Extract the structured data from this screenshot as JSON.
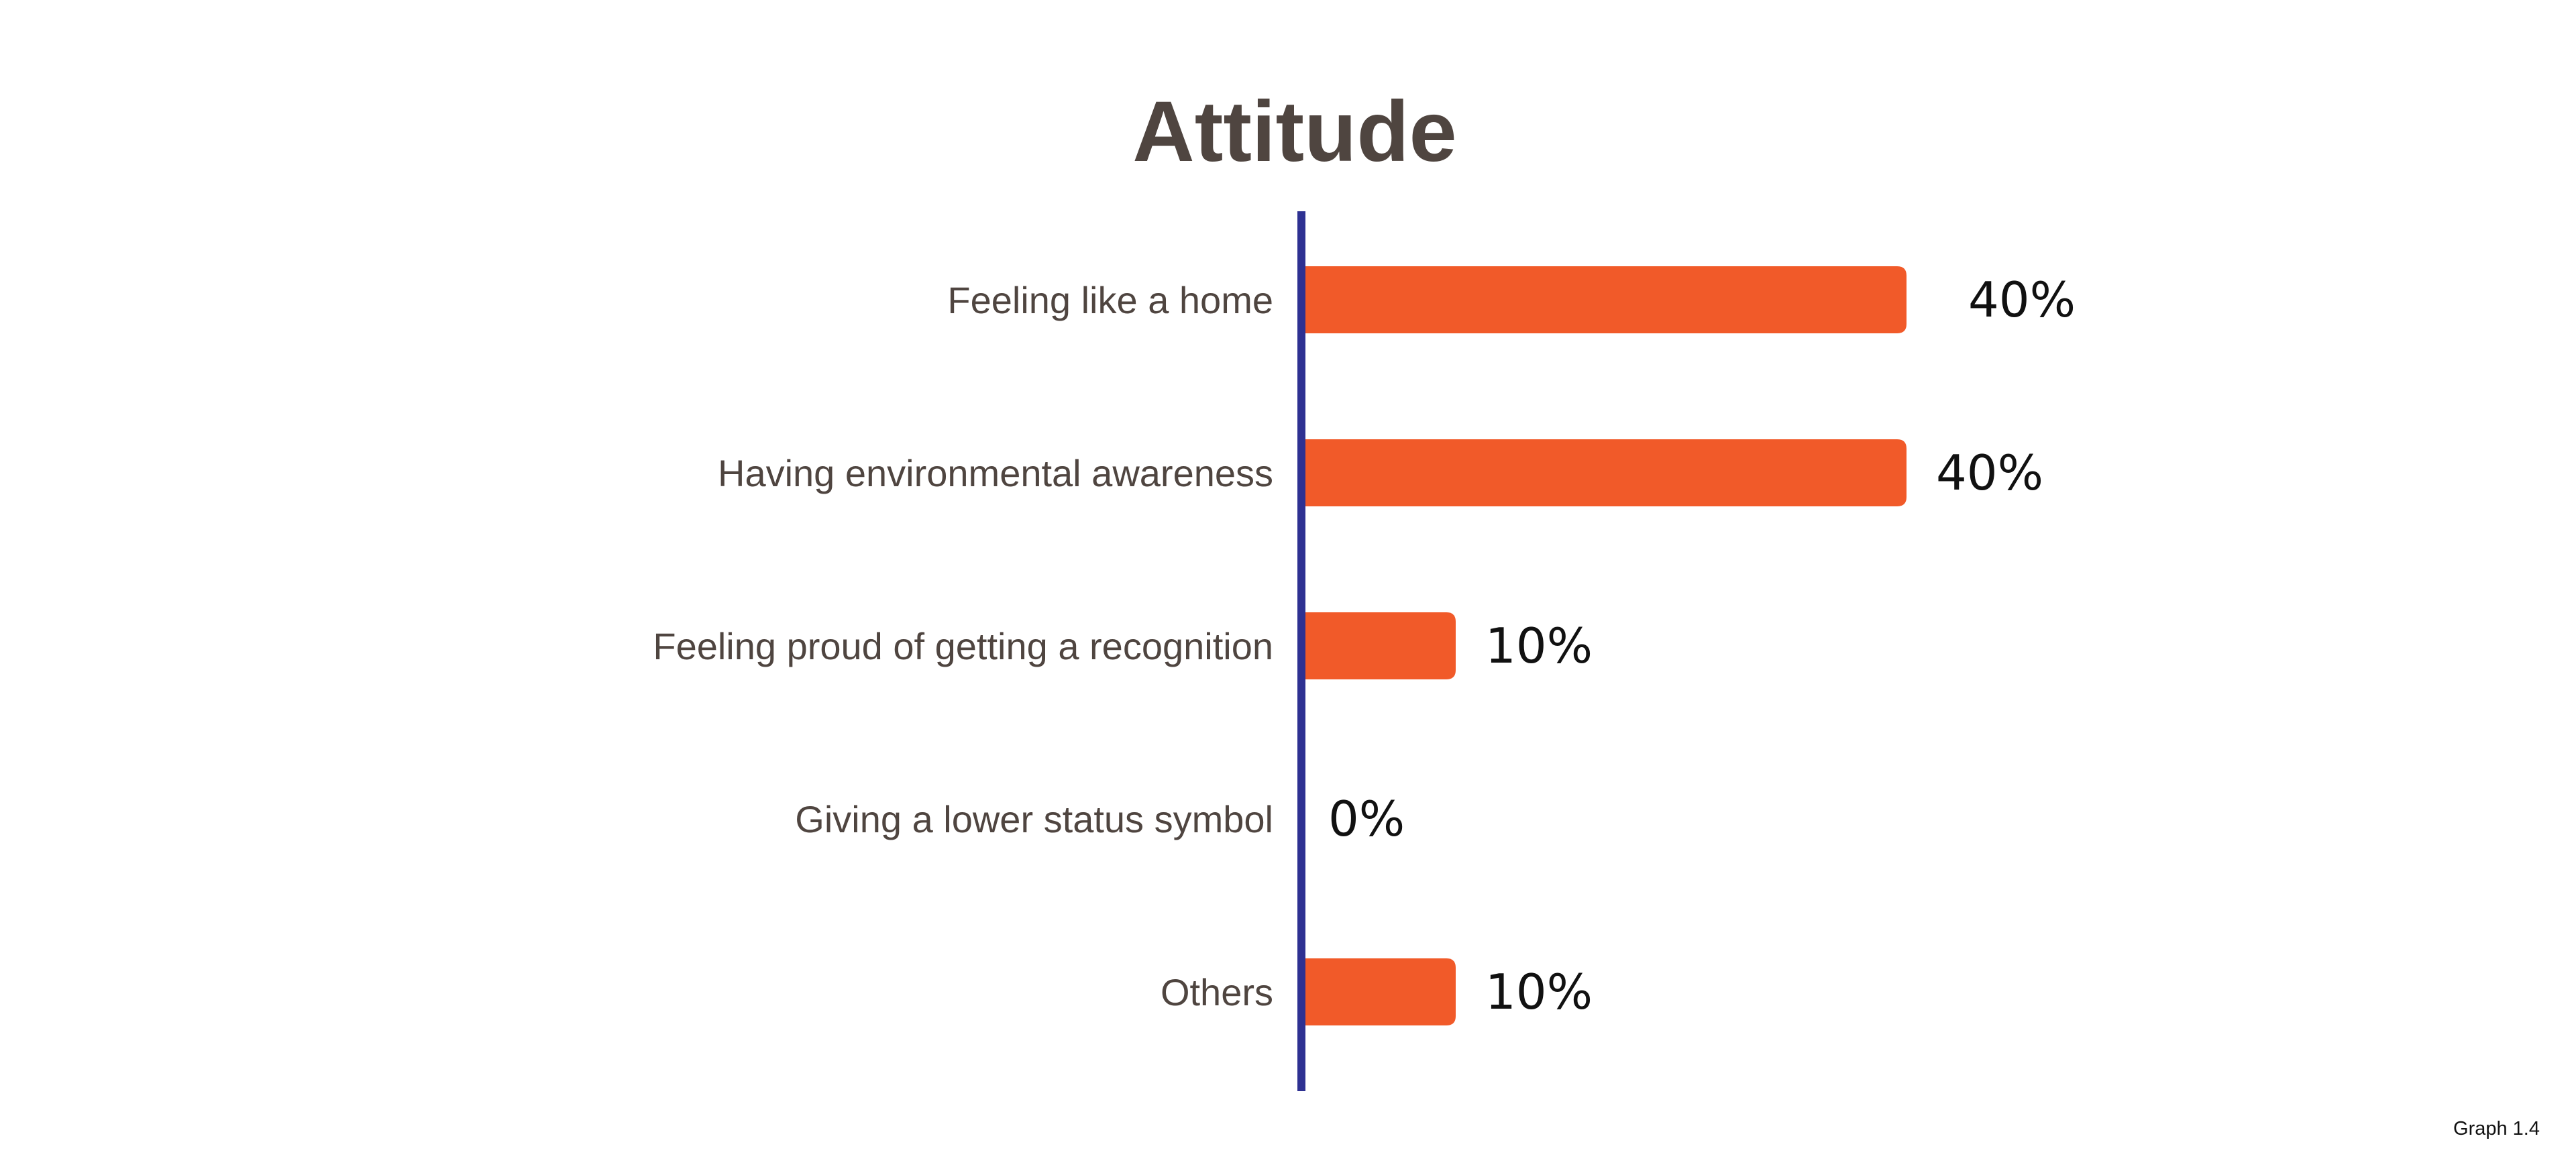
{
  "chart_data": {
    "type": "bar",
    "orientation": "horizontal",
    "title": "Attitude",
    "categories": [
      "Feeling like a home",
      "Having environmental awareness",
      "Feeling proud of getting a recognition",
      "Giving a lower status symbol",
      "Others"
    ],
    "values": [
      40,
      40,
      10,
      0,
      10
    ],
    "value_labels": [
      "40%",
      "40%",
      "10%",
      "0%",
      "10%"
    ],
    "unit": "%",
    "xlim": [
      0,
      40
    ],
    "grid": false,
    "legend": "none",
    "colors": {
      "bar": "#F15A29",
      "axis": "#2E3192",
      "title": "#4F4540",
      "category_text": "#4F4540",
      "value_text": "#111111"
    }
  },
  "footer": {
    "note": "Graph 1.4"
  }
}
